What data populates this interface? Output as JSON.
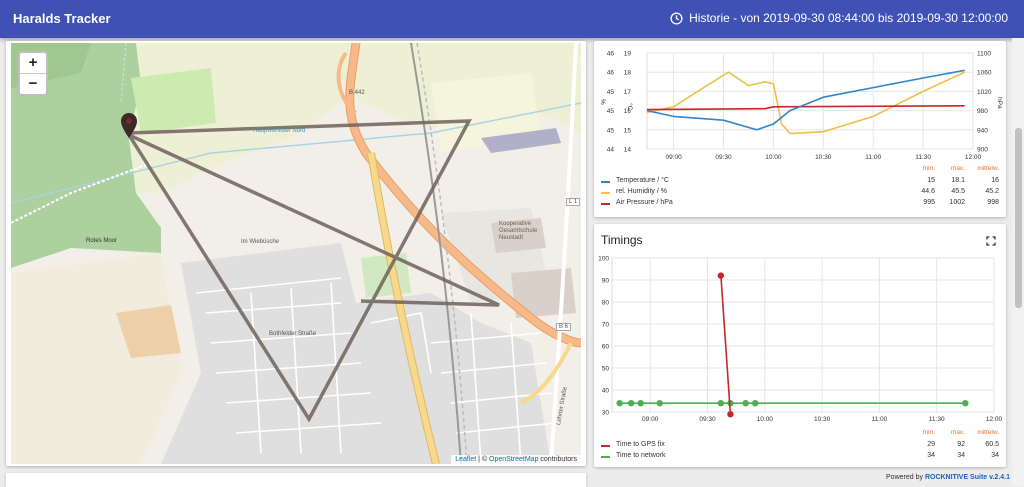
{
  "app": {
    "title": "Haralds Tracker"
  },
  "header": {
    "history_label": "Historie - von 2019-09-30 08:44:00 bis 2019-09-30 12:00:00"
  },
  "map": {
    "zoom_in": "+",
    "zoom_out": "−",
    "attribution": {
      "leaflet": "Leaflet",
      "sep": " | © ",
      "osm": "OpenStreetMap",
      "suffix": " contributors"
    },
    "labels": {
      "b442": "B 442",
      "hauptvorfluter": "Hauptvorfluter Nord",
      "rotes_moor": "Rotes Moor",
      "wiebuesche": "Im Wiebüsche",
      "bothfelder": "Bothfelder Straße",
      "b6": "B 6",
      "lehrter": "Lehrter Straße",
      "l1": "L 1",
      "schule": "Kooperative Gesamtschule Neustadt"
    },
    "colors": {
      "forest": "#add19e",
      "track": "#6e625a",
      "road_orange": "#f7b98a",
      "road_yellow": "#f7d98d",
      "rail": "#a5a5a5"
    }
  },
  "sensor_chart": {
    "legend_headers": {
      "min": "min.",
      "max": "max.",
      "avg": "mittelw."
    },
    "chart_data": {
      "type": "line",
      "x_ticks": [
        "09:00",
        "09:30",
        "10:00",
        "10:30",
        "11:00",
        "11:30",
        "12:00"
      ],
      "left_unit": "°C",
      "left2_unit": "%",
      "right_unit": "hPa",
      "y_temp_ticks": [
        "19",
        "18",
        "17",
        "16",
        "15",
        "14"
      ],
      "y_hum_ticks": [
        "46",
        "46",
        "45",
        "45",
        "45",
        "44"
      ],
      "y_pres_ticks": [
        "1100",
        "1060",
        "1020",
        "980",
        "940",
        "900"
      ],
      "series": [
        {
          "name": "Temperature / °C",
          "color": "#2f86c9",
          "min": "15",
          "max": "18.1",
          "avg": "16",
          "points": [
            [
              "08:44",
              16
            ],
            [
              "09:00",
              15.7
            ],
            [
              "09:30",
              15.5
            ],
            [
              "09:50",
              15.0
            ],
            [
              "10:00",
              15.3
            ],
            [
              "10:10",
              16.0
            ],
            [
              "10:30",
              16.7
            ],
            [
              "11:00",
              17.2
            ],
            [
              "11:30",
              17.7
            ],
            [
              "11:55",
              18.1
            ]
          ]
        },
        {
          "name": "rel. Humidity / %",
          "color": "#e9c24a",
          "min": "44.6",
          "max": "45.5",
          "avg": "45.2",
          "points": [
            [
              "08:44",
              15.9
            ],
            [
              "09:00",
              16.2
            ],
            [
              "09:20",
              17.3
            ],
            [
              "09:33",
              18.0
            ],
            [
              "09:45",
              17.3
            ],
            [
              "09:55",
              17.5
            ],
            [
              "10:00",
              17.4
            ],
            [
              "10:05",
              15.3
            ],
            [
              "10:10",
              14.8
            ],
            [
              "10:30",
              14.9
            ],
            [
              "11:00",
              15.7
            ],
            [
              "11:30",
              17.0
            ],
            [
              "11:55",
              18.0
            ]
          ]
        },
        {
          "name": "Air Pressure / hPa",
          "color": "#c62828",
          "min": "995",
          "max": "1002",
          "avg": "998",
          "points": [
            [
              "08:44",
              16.05
            ],
            [
              "09:55",
              16.1
            ],
            [
              "10:00",
              16.2
            ],
            [
              "11:55",
              16.25
            ]
          ]
        }
      ]
    }
  },
  "timings": {
    "title": "Timings",
    "legend_headers": {
      "min": "min.",
      "max": "max.",
      "avg": "mittelw."
    },
    "chart_data": {
      "type": "line",
      "x_ticks": [
        "09:00",
        "09:30",
        "10:00",
        "10:30",
        "11:00",
        "11:30",
        "12:00"
      ],
      "y_ticks": [
        "100",
        "90",
        "80",
        "70",
        "60",
        "50",
        "40",
        "30"
      ],
      "ylim": [
        30,
        100
      ],
      "series": [
        {
          "name": "Time to GPS fix",
          "color": "#c62828",
          "min": "29",
          "max": "92",
          "avg": "60.5",
          "points": [
            [
              "09:37",
              92
            ],
            [
              "09:42",
              29
            ]
          ]
        },
        {
          "name": "Time to network",
          "color": "#4caf50",
          "min": "34",
          "max": "34",
          "avg": "34",
          "points": [
            [
              "08:44",
              34
            ],
            [
              "08:50",
              34
            ],
            [
              "08:55",
              34
            ],
            [
              "09:05",
              34
            ],
            [
              "09:37",
              34
            ],
            [
              "09:42",
              34
            ],
            [
              "09:50",
              34
            ],
            [
              "09:55",
              34
            ],
            [
              "11:45",
              34
            ]
          ]
        }
      ]
    }
  },
  "footer": {
    "prefix": "Powered by ",
    "brand": "ROCKNITIVE Suite v.2.4.1"
  }
}
